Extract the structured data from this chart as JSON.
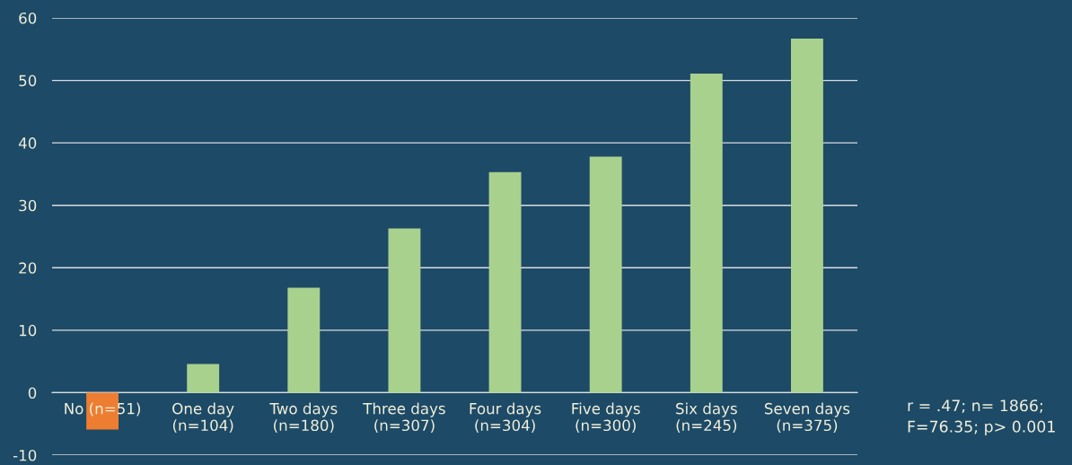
{
  "chart_data": {
    "type": "bar",
    "categories": [
      "No (n=51)",
      "One day\n(n=104)",
      "Two days\n(n=180)",
      "Three days\n(n=307)",
      "Four days\n(n=304)",
      "Five days\n(n=300)",
      "Six days\n(n=245)",
      "Seven days\n(n=375)"
    ],
    "values": [
      -5.9,
      4.6,
      16.8,
      26.3,
      35.3,
      37.8,
      51.1,
      56.7
    ],
    "colors": [
      "#ed7d31",
      "#a9d18e",
      "#a9d18e",
      "#a9d18e",
      "#a9d18e",
      "#a9d18e",
      "#a9d18e",
      "#a9d18e"
    ],
    "ylim": [
      -10,
      60
    ],
    "yticks": [
      -10,
      0,
      10,
      20,
      30,
      40,
      50,
      60
    ],
    "grid": "y",
    "annotations": [
      "r = .47; n= 1866;\nF=76.35; p> 0.001"
    ]
  }
}
